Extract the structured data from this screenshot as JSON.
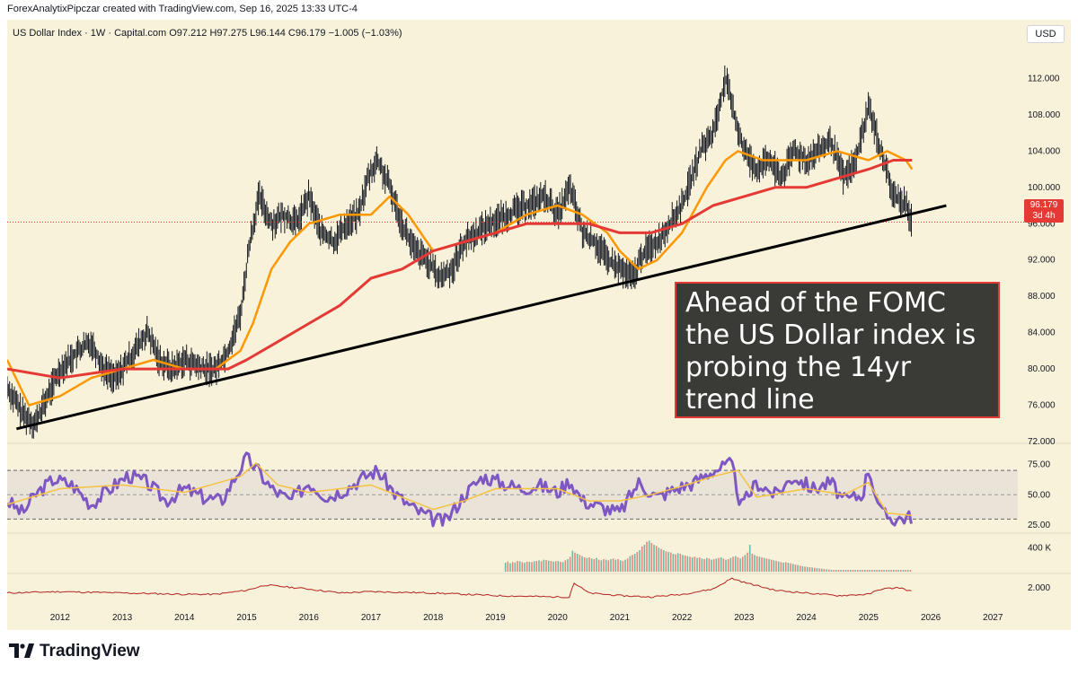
{
  "header": {
    "credit": "ForexAnalytixPipczar created with TradingView.com, Sep 16, 2025 13:33 UTC-4"
  },
  "legend": {
    "text": "US Dollar Index · 1W · Capital.com  O97.212  H97.275  L96.144  C96.179  −1.005 (−1.03%)"
  },
  "currency_button": "USD",
  "price_badge": {
    "price": "96.179",
    "countdown": "3d 4h"
  },
  "annotation": {
    "text": "Ahead of the FOMC the US Dollar index is probing the 14yr trend line"
  },
  "footer": {
    "brand": "TradingView",
    "logo": "tradingview-logo-icon"
  },
  "colors": {
    "background": "#f7f2d9",
    "ma_fast": "#ff9800",
    "ma_slow": "#e53935",
    "rsi": "#7e57c2",
    "rsi_ma": "#f5c342",
    "trendline": "#000000",
    "annotation_bg": "#3a3b36",
    "annotation_border": "#e53935",
    "lower_indicator": "#b22222"
  },
  "chart_data": [
    {
      "type": "line",
      "panel": "price",
      "y_ticks": [
        "112.000",
        "108.000",
        "104.000",
        "100.000",
        "96.000",
        "92.000",
        "88.000",
        "84.000",
        "80.000",
        "76.000",
        "72.000"
      ],
      "ylim": [
        72,
        116
      ],
      "x_ticks": [
        "2012",
        "2013",
        "2014",
        "2015",
        "2016",
        "2017",
        "2018",
        "2019",
        "2020",
        "2021",
        "2022",
        "2023",
        "2024",
        "2025",
        "2026",
        "2027"
      ],
      "xlim": [
        2011.15,
        2027.4
      ],
      "series": [
        {
          "role": "price",
          "x": [
            2011.15,
            2011.4,
            2011.6,
            2011.8,
            2012.0,
            2012.3,
            2012.5,
            2012.7,
            2012.9,
            2013.2,
            2013.4,
            2013.6,
            2013.8,
            2014.0,
            2014.3,
            2014.5,
            2014.7,
            2014.9,
            2015.05,
            2015.2,
            2015.4,
            2015.6,
            2015.8,
            2016.0,
            2016.2,
            2016.4,
            2016.6,
            2016.8,
            2016.95,
            2017.1,
            2017.3,
            2017.5,
            2017.7,
            2017.9,
            2018.1,
            2018.3,
            2018.5,
            2018.7,
            2018.9,
            2019.2,
            2019.5,
            2019.8,
            2020.0,
            2020.2,
            2020.4,
            2020.6,
            2020.8,
            2021.0,
            2021.2,
            2021.4,
            2021.6,
            2021.8,
            2022.0,
            2022.3,
            2022.5,
            2022.7,
            2022.8,
            2023.0,
            2023.2,
            2023.4,
            2023.6,
            2023.8,
            2024.0,
            2024.2,
            2024.4,
            2024.6,
            2024.8,
            2025.0,
            2025.2,
            2025.4,
            2025.6,
            2025.7
          ],
          "y": [
            78,
            75,
            74,
            77,
            80,
            82,
            83,
            80,
            79,
            82,
            84,
            81,
            80,
            81,
            80,
            80,
            82,
            86,
            94,
            99,
            96,
            97,
            96,
            99,
            95,
            94,
            96,
            97,
            101,
            103,
            100,
            96,
            93,
            92,
            90,
            91,
            94,
            95,
            96,
            97,
            98,
            99,
            97,
            100,
            95,
            94,
            92,
            91,
            90,
            93,
            94,
            96,
            98,
            104,
            106,
            112,
            109,
            104,
            102,
            103,
            101,
            104,
            103,
            104,
            105,
            101,
            103,
            109,
            104,
            99,
            98,
            96.2
          ]
        },
        {
          "role": "ma_fast",
          "x": [
            2011.15,
            2011.5,
            2012.0,
            2012.5,
            2013.0,
            2013.5,
            2014.0,
            2014.5,
            2014.9,
            2015.1,
            2015.4,
            2015.7,
            2016.0,
            2016.5,
            2017.0,
            2017.3,
            2017.6,
            2018.0,
            2018.5,
            2019.0,
            2019.5,
            2020.0,
            2020.4,
            2020.8,
            2021.0,
            2021.3,
            2021.6,
            2022.0,
            2022.4,
            2022.7,
            2022.9,
            2023.3,
            2023.7,
            2024.0,
            2024.5,
            2025.0,
            2025.3,
            2025.6,
            2025.7
          ],
          "y": [
            81,
            76,
            77,
            79,
            80,
            81,
            80,
            80,
            82,
            85,
            91,
            94,
            96,
            97,
            97,
            99,
            97,
            93,
            94,
            95,
            97,
            98,
            97,
            95,
            93,
            91,
            92,
            95,
            100,
            103,
            104,
            103,
            103,
            103,
            104,
            103,
            104,
            103,
            102
          ]
        },
        {
          "role": "ma_slow",
          "x": [
            2011.15,
            2012.0,
            2013.0,
            2014.0,
            2014.7,
            2015.0,
            2015.5,
            2016.0,
            2016.5,
            2017.0,
            2017.5,
            2018.0,
            2018.5,
            2019.0,
            2019.5,
            2020.0,
            2020.5,
            2021.0,
            2021.5,
            2022.0,
            2022.5,
            2023.0,
            2023.5,
            2024.0,
            2024.5,
            2025.0,
            2025.4,
            2025.7
          ],
          "y": [
            80,
            79,
            80,
            80,
            80,
            81,
            83,
            85,
            87,
            90,
            91,
            93,
            94,
            95,
            96,
            96,
            96,
            95,
            95,
            96,
            98,
            99,
            100,
            100,
            101,
            102,
            103,
            103
          ]
        },
        {
          "role": "trendline",
          "x": [
            2011.3,
            2026.25
          ],
          "y": [
            73.4,
            98.0
          ]
        }
      ]
    },
    {
      "type": "line",
      "panel": "rsi",
      "y_ticks": [
        "75.00",
        "50.00",
        "25.00"
      ],
      "ylim": [
        20,
        90
      ],
      "bands": [
        30,
        50,
        70
      ],
      "series": [
        {
          "role": "rsi",
          "x": [
            2011.15,
            2011.4,
            2011.6,
            2011.9,
            2012.2,
            2012.5,
            2012.8,
            2013.1,
            2013.4,
            2013.7,
            2014.0,
            2014.3,
            2014.6,
            2014.9,
            2015.0,
            2015.15,
            2015.4,
            2015.7,
            2016.0,
            2016.3,
            2016.6,
            2016.9,
            2017.1,
            2017.4,
            2017.7,
            2018.0,
            2018.2,
            2018.5,
            2018.8,
            2019.1,
            2019.4,
            2019.7,
            2020.0,
            2020.2,
            2020.4,
            2020.7,
            2021.0,
            2021.3,
            2021.6,
            2021.9,
            2022.2,
            2022.5,
            2022.8,
            2022.95,
            2023.2,
            2023.5,
            2023.8,
            2024.1,
            2024.4,
            2024.6,
            2024.9,
            2025.0,
            2025.2,
            2025.4,
            2025.7
          ],
          "y": [
            45,
            35,
            50,
            63,
            58,
            42,
            55,
            66,
            60,
            45,
            55,
            48,
            45,
            72,
            80,
            72,
            55,
            45,
            60,
            48,
            55,
            65,
            70,
            50,
            38,
            30,
            28,
            50,
            65,
            60,
            55,
            58,
            52,
            62,
            45,
            40,
            35,
            60,
            48,
            55,
            60,
            70,
            75,
            40,
            60,
            50,
            65,
            55,
            60,
            45,
            50,
            72,
            35,
            30,
            32
          ]
        },
        {
          "role": "rsi_ma",
          "x": [
            2011.15,
            2012.0,
            2013.0,
            2014.0,
            2014.9,
            2015.15,
            2015.5,
            2016.0,
            2017.0,
            2018.0,
            2018.5,
            2019.0,
            2020.0,
            2020.5,
            2021.0,
            2021.5,
            2022.0,
            2022.5,
            2022.9,
            2023.2,
            2024.0,
            2024.6,
            2025.0,
            2025.3,
            2025.7
          ],
          "y": [
            42,
            55,
            58,
            52,
            65,
            76,
            58,
            52,
            58,
            38,
            45,
            55,
            55,
            45,
            45,
            50,
            57,
            65,
            70,
            48,
            55,
            50,
            60,
            35,
            33
          ]
        }
      ]
    },
    {
      "type": "bar",
      "panel": "volume",
      "y_ticks": [
        "400 K"
      ],
      "ylim": [
        0,
        600
      ],
      "bars": {
        "x_start": 2019.15,
        "x_end": 2025.7,
        "count": 170,
        "values": [
          150,
          170,
          140,
          160,
          155,
          180,
          175,
          160,
          150,
          170,
          165,
          160,
          175,
          180,
          190,
          175,
          200,
          195,
          185,
          180,
          170,
          175,
          180,
          165,
          160,
          190,
          210,
          250,
          350,
          320,
          300,
          280,
          260,
          240,
          230,
          240,
          220,
          210,
          230,
          200,
          190,
          210,
          200,
          190,
          210,
          220,
          200,
          210,
          190,
          180,
          200,
          220,
          260,
          280,
          300,
          330,
          360,
          420,
          450,
          500,
          520,
          480,
          450,
          430,
          400,
          380,
          360,
          340,
          330,
          320,
          300,
          290,
          310,
          300,
          280,
          270,
          260,
          250,
          240,
          250,
          230,
          240,
          220,
          210,
          230,
          220,
          200,
          210,
          220,
          230,
          240,
          220,
          200,
          210,
          230,
          250,
          260,
          240,
          220,
          250,
          280,
          320,
          450,
          300,
          280,
          260,
          250,
          240,
          230,
          220,
          210,
          200,
          190,
          180,
          170,
          160,
          150,
          160,
          150,
          140,
          130,
          120,
          110,
          100,
          90,
          85,
          80,
          75,
          70,
          65,
          60,
          55,
          50,
          45,
          40,
          35,
          30,
          30,
          30,
          30,
          30,
          30,
          30,
          30,
          30,
          30,
          30,
          30,
          30,
          30,
          30,
          30,
          30,
          30,
          30,
          30,
          30,
          30,
          30,
          30,
          30,
          30,
          30,
          30,
          30,
          30,
          30,
          30,
          30,
          30,
          30
        ],
        "colors": [
          "#26a69a",
          "#ef5350"
        ]
      }
    },
    {
      "type": "line",
      "panel": "lower_indicator",
      "y_ticks": [
        "2.000"
      ],
      "ylim": [
        0.5,
        3.0
      ],
      "series": [
        {
          "role": "indicator",
          "x": [
            2011.15,
            2012.0,
            2013.0,
            2014.0,
            2014.5,
            2015.0,
            2015.3,
            2016.0,
            2016.5,
            2017.0,
            2018.0,
            2019.0,
            2020.0,
            2020.2,
            2020.25,
            2020.5,
            2021.0,
            2021.5,
            2022.0,
            2022.5,
            2022.8,
            2023.0,
            2023.5,
            2024.0,
            2024.5,
            2025.0,
            2025.2,
            2025.5,
            2025.7
          ],
          "y": [
            1.6,
            1.7,
            1.6,
            1.5,
            1.5,
            1.8,
            2.2,
            1.9,
            1.6,
            1.7,
            1.6,
            1.4,
            1.3,
            1.3,
            2.4,
            1.6,
            1.4,
            1.3,
            1.5,
            1.9,
            2.7,
            2.4,
            1.8,
            1.6,
            1.4,
            1.5,
            1.9,
            2.0,
            1.7
          ]
        }
      ]
    }
  ]
}
